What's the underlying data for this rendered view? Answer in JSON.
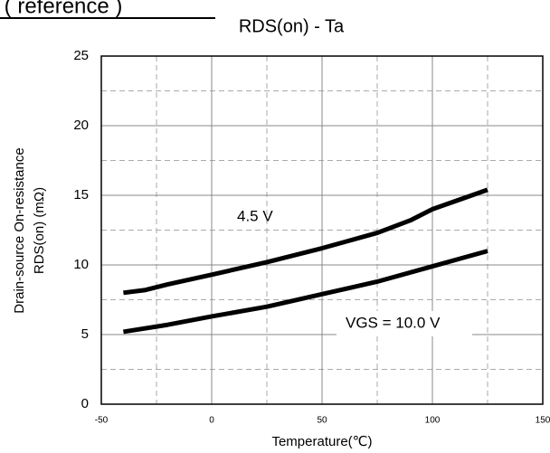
{
  "header": {
    "text": "ta ( reference )"
  },
  "chart_data": {
    "type": "line",
    "title": "RDS(on) - Ta",
    "ylabel": [
      "Drain-source On-resistance",
      "RDS(on) (mΩ)"
    ],
    "xlabel": "Temperature(℃)",
    "xlim": [
      -50,
      150
    ],
    "xticks": [
      -50,
      0,
      50,
      100,
      150
    ],
    "ylim": [
      0,
      25
    ],
    "yticks": [
      0,
      5,
      10,
      15,
      20,
      25
    ],
    "grid": true,
    "annotations": [
      "4.5 V",
      "VGS = 10.0 V"
    ],
    "series": [
      {
        "color": "#000000",
        "x": [
          -40,
          -30,
          -20,
          0,
          25,
          50,
          75,
          90,
          100,
          125
        ],
        "values": [
          8.0,
          8.2,
          8.6,
          9.3,
          10.2,
          11.2,
          12.3,
          13.2,
          14.0,
          15.4
        ]
      },
      {
        "color": "#000000",
        "x": [
          -40,
          -20,
          0,
          25,
          50,
          75,
          100,
          125
        ],
        "values": [
          5.2,
          5.7,
          6.3,
          7.0,
          7.9,
          8.8,
          9.9,
          11.0
        ]
      }
    ]
  }
}
